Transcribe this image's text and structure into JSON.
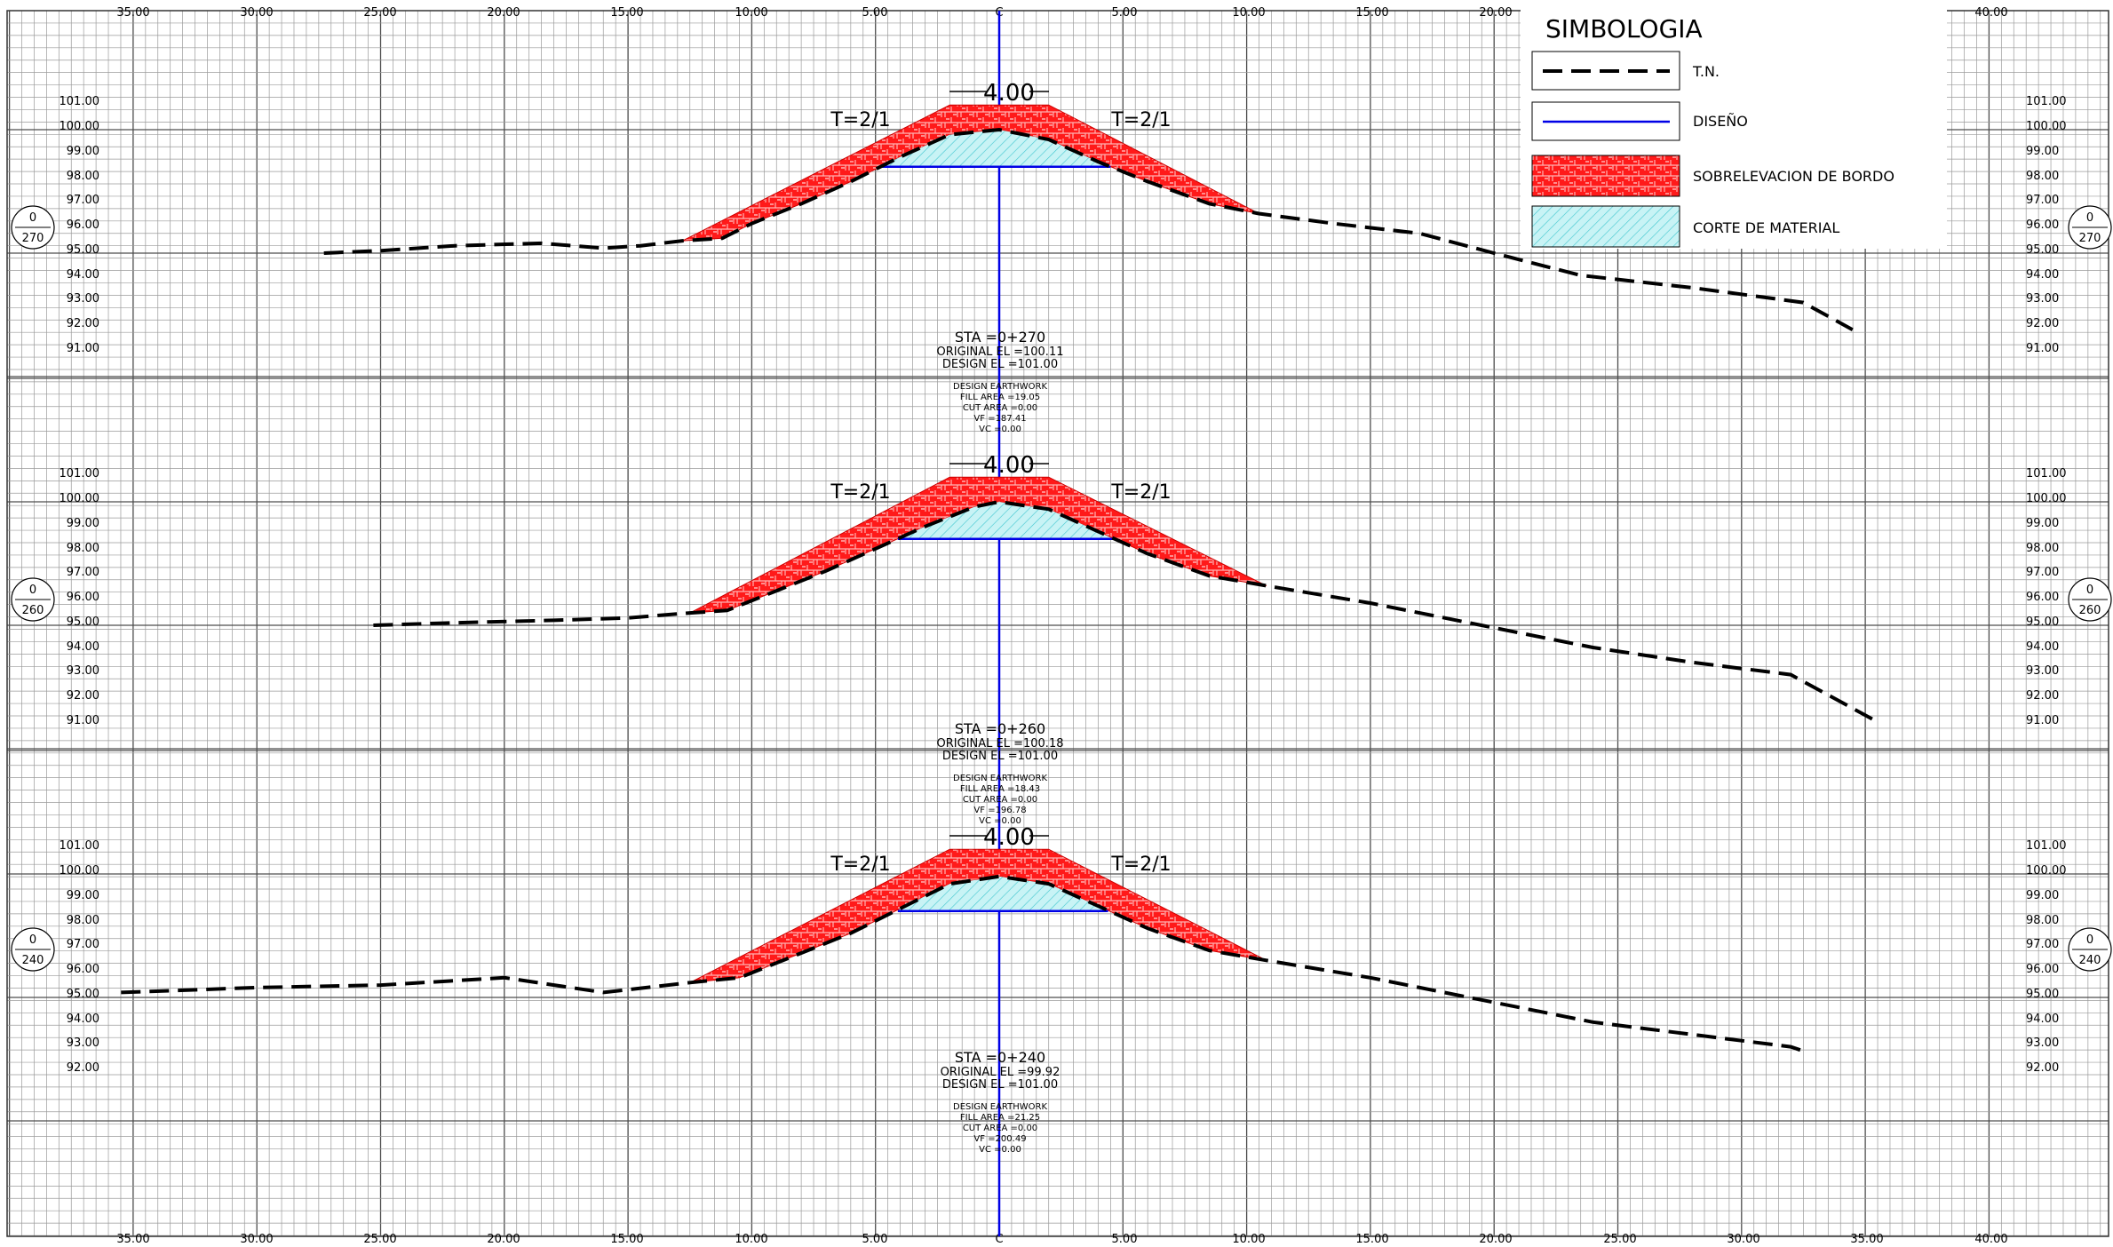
{
  "x_axis": {
    "ticks_left": [
      "35.00",
      "30.00",
      "25.00",
      "20.00",
      "15.00",
      "10.00",
      "5.00"
    ],
    "center": "C",
    "ticks_right": [
      "5.00",
      "10.00",
      "15.00",
      "20.00",
      "25.00",
      "30.00",
      "35.00",
      "40.00"
    ]
  },
  "legend": {
    "title": "SIMBOLOGIA",
    "items": [
      {
        "key": "tn",
        "label": "T.N."
      },
      {
        "key": "diseno",
        "label": "DISEÑO"
      },
      {
        "key": "sobre",
        "label": "SOBRELEVACION DE BORDO"
      },
      {
        "key": "corte",
        "label": "CORTE DE MATERIAL"
      }
    ]
  },
  "colors": {
    "grid_minor": "#9a9a9a",
    "grid_major": "#4d4d4d",
    "fill_red": "#ff1a1a",
    "cut_cyan": "#b9f0f3",
    "design_blue": "#0000e6",
    "ground_black": "#000000"
  },
  "sections": [
    {
      "station_top": "0",
      "station_bottom": "270",
      "elevations": [
        "101.00",
        "100.00",
        "99.00",
        "98.00",
        "97.00",
        "96.00",
        "95.00",
        "94.00",
        "93.00",
        "92.00",
        "91.00"
      ],
      "crest_width": "4.00",
      "slope_left": "T=2/1",
      "slope_right": "T=2/1",
      "sta": "STA =0+270",
      "original_el": "ORIGINAL EL =100.11",
      "design_el": "DESIGN EL =101.00",
      "earthwork_title": "DESIGN EARTHWORK",
      "fill_area": "FILL AREA =19.05",
      "cut_area": "CUT AREA =0.00",
      "vf": "VF =187.41",
      "vc": "VC =0.00",
      "ground": [
        [
          -27.3,
          95.0
        ],
        [
          -25,
          95.1
        ],
        [
          -22,
          95.3
        ],
        [
          -18.5,
          95.4
        ],
        [
          -16,
          95.2
        ],
        [
          -14.5,
          95.3
        ],
        [
          -12.8,
          95.5
        ],
        [
          -11.2,
          95.6
        ],
        [
          -10,
          96.2
        ],
        [
          -8,
          97.0
        ],
        [
          -6,
          97.9
        ],
        [
          -4,
          98.9
        ],
        [
          -2,
          99.8
        ],
        [
          0,
          100.0
        ],
        [
          2,
          99.6
        ],
        [
          4,
          98.7
        ],
        [
          6,
          97.9
        ],
        [
          8.5,
          97.0
        ],
        [
          10.5,
          96.6
        ],
        [
          13.5,
          96.2
        ],
        [
          17,
          95.8
        ],
        [
          20,
          95.0
        ],
        [
          23.5,
          94.1
        ],
        [
          28,
          93.6
        ],
        [
          32.5,
          93.0
        ],
        [
          34.5,
          91.9
        ]
      ],
      "design_top": [
        [
          -12.8,
          95.5
        ],
        [
          -2,
          101.0
        ],
        [
          2,
          101.0
        ],
        [
          10.5,
          96.6
        ]
      ],
      "cut_level": 98.5
    },
    {
      "station_top": "0",
      "station_bottom": "260",
      "elevations": [
        "101.00",
        "100.00",
        "99.00",
        "98.00",
        "97.00",
        "96.00",
        "95.00",
        "94.00",
        "93.00",
        "92.00",
        "91.00"
      ],
      "crest_width": "4.00",
      "slope_left": "T=2/1",
      "slope_right": "T=2/1",
      "sta": "STA =0+260",
      "original_el": "ORIGINAL EL =100.18",
      "design_el": "DESIGN EL =101.00",
      "earthwork_title": "DESIGN EARTHWORK",
      "fill_area": "FILL AREA =18.43",
      "cut_area": "CUT AREA =0.00",
      "vf": "VF =196.78",
      "vc": "VC =0.00",
      "ground": [
        [
          -25.3,
          95.0
        ],
        [
          -22,
          95.1
        ],
        [
          -18,
          95.2
        ],
        [
          -15,
          95.3
        ],
        [
          -12.5,
          95.5
        ],
        [
          -11,
          95.6
        ],
        [
          -9,
          96.4
        ],
        [
          -7,
          97.2
        ],
        [
          -5,
          98.1
        ],
        [
          -3,
          99.0
        ],
        [
          -1,
          99.8
        ],
        [
          0,
          100.0
        ],
        [
          2,
          99.7
        ],
        [
          4,
          98.8
        ],
        [
          6,
          97.9
        ],
        [
          8.5,
          97.0
        ],
        [
          10.8,
          96.6
        ],
        [
          15,
          95.9
        ],
        [
          20,
          94.9
        ],
        [
          24,
          94.1
        ],
        [
          28,
          93.5
        ],
        [
          32,
          93.0
        ],
        [
          35.3,
          91.2
        ]
      ],
      "design_top": [
        [
          -12.5,
          95.5
        ],
        [
          -2,
          101.0
        ],
        [
          2,
          101.0
        ],
        [
          10.8,
          96.6
        ]
      ],
      "cut_level": 98.5
    },
    {
      "station_top": "0",
      "station_bottom": "240",
      "elevations": [
        "101.00",
        "100.00",
        "99.00",
        "98.00",
        "97.00",
        "96.00",
        "95.00",
        "94.00",
        "93.00",
        "92.00"
      ],
      "crest_width": "4.00",
      "slope_left": "T=2/1",
      "slope_right": "T=2/1",
      "sta": "STA =0+240",
      "original_el": "ORIGINAL EL =99.92",
      "design_el": "DESIGN EL =101.00",
      "earthwork_title": "DESIGN EARTHWORK",
      "fill_area": "FILL AREA =21.25",
      "cut_area": "CUT AREA =0.00",
      "vf": "VF =200.49",
      "vc": "VC =0.00",
      "ground": [
        [
          -35.5,
          95.2
        ],
        [
          -30,
          95.4
        ],
        [
          -25,
          95.5
        ],
        [
          -20,
          95.8
        ],
        [
          -16,
          95.2
        ],
        [
          -12.5,
          95.6
        ],
        [
          -10.5,
          95.8
        ],
        [
          -8,
          96.8
        ],
        [
          -6,
          97.6
        ],
        [
          -4,
          98.6
        ],
        [
          -2,
          99.6
        ],
        [
          0,
          99.9
        ],
        [
          2,
          99.6
        ],
        [
          4,
          98.7
        ],
        [
          6,
          97.8
        ],
        [
          8.5,
          96.9
        ],
        [
          10.8,
          96.5
        ],
        [
          15,
          95.8
        ],
        [
          20,
          94.8
        ],
        [
          24,
          94.0
        ],
        [
          28,
          93.5
        ],
        [
          32,
          93.0
        ],
        [
          32.6,
          92.8
        ]
      ],
      "design_top": [
        [
          -12.5,
          95.6
        ],
        [
          -2,
          101.0
        ],
        [
          2,
          101.0
        ],
        [
          10.8,
          96.5
        ]
      ],
      "cut_level": 98.5
    }
  ]
}
